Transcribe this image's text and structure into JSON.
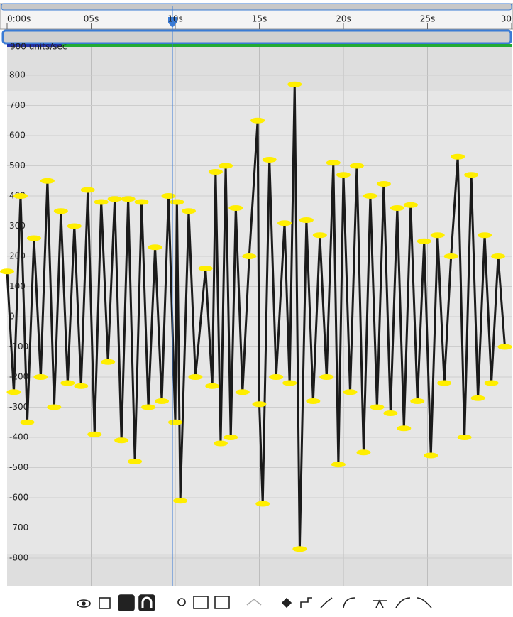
{
  "ruler": {
    "labels": [
      "0:00s",
      "05s",
      "10s",
      "15s",
      "20s",
      "25s",
      "30"
    ]
  },
  "graph": {
    "unit_label": "900 units/sec",
    "ylim": [
      -900,
      900
    ],
    "yticks": [
      800,
      700,
      600,
      500,
      400,
      300,
      200,
      100,
      0,
      -100,
      -200,
      -300,
      -400,
      -500,
      -600,
      -700,
      -800
    ],
    "xlim": [
      0,
      30
    ],
    "keyframes": {
      "x": [
        0.0,
        0.4,
        0.8,
        1.2,
        1.6,
        2.0,
        2.4,
        2.8,
        3.2,
        3.6,
        4.0,
        4.4,
        4.8,
        5.2,
        5.6,
        6.0,
        6.4,
        6.8,
        7.2,
        7.6,
        8.0,
        8.4,
        8.8,
        9.2,
        9.6,
        10.0,
        10.1,
        10.3,
        10.8,
        11.2,
        11.8,
        12.2,
        12.4,
        12.7,
        13.0,
        13.3,
        13.6,
        14.0,
        14.4,
        14.9,
        15.0,
        15.2,
        15.6,
        16.0,
        16.5,
        16.8,
        17.1,
        17.4,
        17.8,
        18.2,
        18.6,
        19.0,
        19.4,
        19.7,
        20.0,
        20.4,
        20.8,
        21.2,
        21.6,
        22.0,
        22.4,
        22.8,
        23.2,
        23.6,
        24.0,
        24.4,
        24.8,
        25.2,
        25.6,
        26.0,
        26.4,
        26.8,
        27.2,
        27.6,
        28.0,
        28.4,
        28.8,
        29.2,
        29.6
      ],
      "values": [
        150,
        -250,
        400,
        -350,
        260,
        -200,
        450,
        -300,
        350,
        -220,
        300,
        -230,
        420,
        -390,
        380,
        -150,
        390,
        -410,
        390,
        -480,
        380,
        -300,
        230,
        -280,
        400,
        -350,
        380,
        -610,
        350,
        -200,
        160,
        -230,
        480,
        -420,
        500,
        -400,
        360,
        -250,
        200,
        650,
        -290,
        -620,
        520,
        -200,
        310,
        -220,
        770,
        -770,
        320,
        -280,
        270,
        -200,
        510,
        -490,
        470,
        -250,
        500,
        -450,
        400,
        -300,
        440,
        -320,
        360,
        -370,
        370,
        -280,
        250,
        -460,
        270,
        -220,
        200,
        530,
        -400,
        470,
        -270,
        270,
        -220,
        200,
        -100
      ]
    }
  }
}
